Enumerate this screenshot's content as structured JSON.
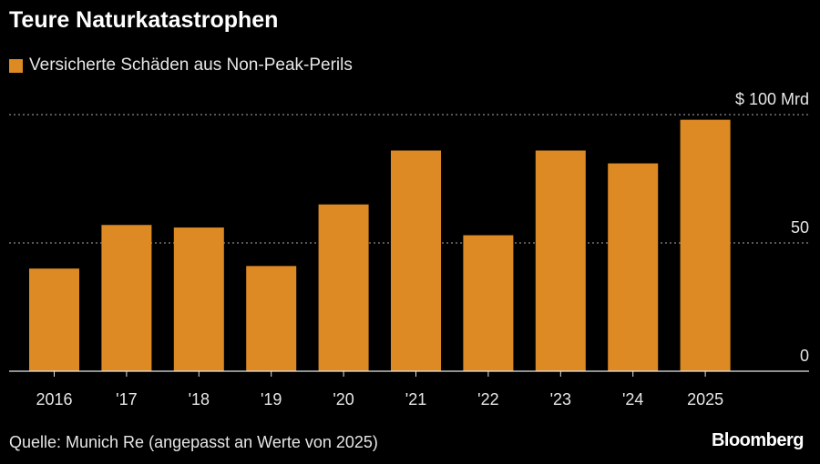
{
  "title": "Teure Naturkatastrophen",
  "source": "Quelle: Munich Re (angepasst an Werte von 2025)",
  "brand": "Bloomberg",
  "colors": {
    "bar": "#dd8a25",
    "grid": "#8a8a8a",
    "background": "#000000"
  },
  "chart_data": {
    "type": "bar",
    "title": "Teure Naturkatastrophen",
    "legend": [
      "Versicherte Schäden aus Non-Peak-Perils"
    ],
    "categories": [
      "2016",
      "'17",
      "'18",
      "'19",
      "'20",
      "'21",
      "'22",
      "'23",
      "'24",
      "2025"
    ],
    "series": [
      {
        "name": "Versicherte Schäden aus Non-Peak-Perils",
        "values": [
          40,
          57,
          56,
          41,
          65,
          86,
          53,
          86,
          81,
          98
        ]
      }
    ],
    "ylim": [
      0,
      100
    ],
    "yticks": [
      0,
      50,
      100
    ],
    "ytick_labels": [
      "0",
      "50",
      "$ 100 Mrd"
    ],
    "xlabel": "",
    "ylabel": "",
    "grid": true,
    "legend_position": "top-left"
  }
}
